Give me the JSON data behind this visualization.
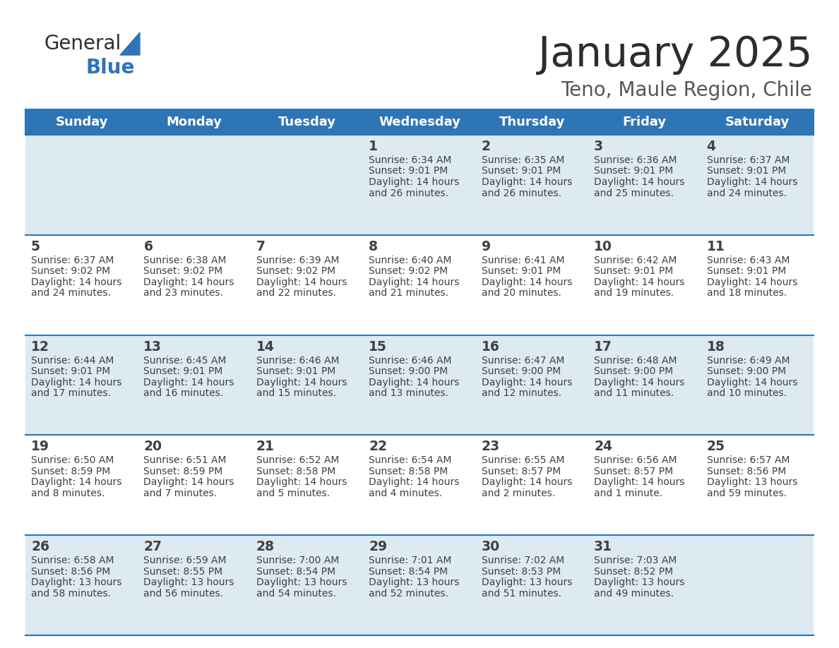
{
  "title": "January 2025",
  "subtitle": "Teno, Maule Region, Chile",
  "days_of_week": [
    "Sunday",
    "Monday",
    "Tuesday",
    "Wednesday",
    "Thursday",
    "Friday",
    "Saturday"
  ],
  "header_bg": "#2E75B6",
  "header_text": "#FFFFFF",
  "row_bg_odd": "#DEEAF1",
  "row_bg_even": "#FFFFFF",
  "cell_border_color": "#2E75B6",
  "text_color": "#404040",
  "calendar": [
    [
      null,
      null,
      null,
      {
        "day": 1,
        "sunrise": "6:34 AM",
        "sunset": "9:01 PM",
        "daylight": "14 hours",
        "daylight2": "and 26 minutes."
      },
      {
        "day": 2,
        "sunrise": "6:35 AM",
        "sunset": "9:01 PM",
        "daylight": "14 hours",
        "daylight2": "and 26 minutes."
      },
      {
        "day": 3,
        "sunrise": "6:36 AM",
        "sunset": "9:01 PM",
        "daylight": "14 hours",
        "daylight2": "and 25 minutes."
      },
      {
        "day": 4,
        "sunrise": "6:37 AM",
        "sunset": "9:01 PM",
        "daylight": "14 hours",
        "daylight2": "and 24 minutes."
      }
    ],
    [
      {
        "day": 5,
        "sunrise": "6:37 AM",
        "sunset": "9:02 PM",
        "daylight": "14 hours",
        "daylight2": "and 24 minutes."
      },
      {
        "day": 6,
        "sunrise": "6:38 AM",
        "sunset": "9:02 PM",
        "daylight": "14 hours",
        "daylight2": "and 23 minutes."
      },
      {
        "day": 7,
        "sunrise": "6:39 AM",
        "sunset": "9:02 PM",
        "daylight": "14 hours",
        "daylight2": "and 22 minutes."
      },
      {
        "day": 8,
        "sunrise": "6:40 AM",
        "sunset": "9:02 PM",
        "daylight": "14 hours",
        "daylight2": "and 21 minutes."
      },
      {
        "day": 9,
        "sunrise": "6:41 AM",
        "sunset": "9:01 PM",
        "daylight": "14 hours",
        "daylight2": "and 20 minutes."
      },
      {
        "day": 10,
        "sunrise": "6:42 AM",
        "sunset": "9:01 PM",
        "daylight": "14 hours",
        "daylight2": "and 19 minutes."
      },
      {
        "day": 11,
        "sunrise": "6:43 AM",
        "sunset": "9:01 PM",
        "daylight": "14 hours",
        "daylight2": "and 18 minutes."
      }
    ],
    [
      {
        "day": 12,
        "sunrise": "6:44 AM",
        "sunset": "9:01 PM",
        "daylight": "14 hours",
        "daylight2": "and 17 minutes."
      },
      {
        "day": 13,
        "sunrise": "6:45 AM",
        "sunset": "9:01 PM",
        "daylight": "14 hours",
        "daylight2": "and 16 minutes."
      },
      {
        "day": 14,
        "sunrise": "6:46 AM",
        "sunset": "9:01 PM",
        "daylight": "14 hours",
        "daylight2": "and 15 minutes."
      },
      {
        "day": 15,
        "sunrise": "6:46 AM",
        "sunset": "9:00 PM",
        "daylight": "14 hours",
        "daylight2": "and 13 minutes."
      },
      {
        "day": 16,
        "sunrise": "6:47 AM",
        "sunset": "9:00 PM",
        "daylight": "14 hours",
        "daylight2": "and 12 minutes."
      },
      {
        "day": 17,
        "sunrise": "6:48 AM",
        "sunset": "9:00 PM",
        "daylight": "14 hours",
        "daylight2": "and 11 minutes."
      },
      {
        "day": 18,
        "sunrise": "6:49 AM",
        "sunset": "9:00 PM",
        "daylight": "14 hours",
        "daylight2": "and 10 minutes."
      }
    ],
    [
      {
        "day": 19,
        "sunrise": "6:50 AM",
        "sunset": "8:59 PM",
        "daylight": "14 hours",
        "daylight2": "and 8 minutes."
      },
      {
        "day": 20,
        "sunrise": "6:51 AM",
        "sunset": "8:59 PM",
        "daylight": "14 hours",
        "daylight2": "and 7 minutes."
      },
      {
        "day": 21,
        "sunrise": "6:52 AM",
        "sunset": "8:58 PM",
        "daylight": "14 hours",
        "daylight2": "and 5 minutes."
      },
      {
        "day": 22,
        "sunrise": "6:54 AM",
        "sunset": "8:58 PM",
        "daylight": "14 hours",
        "daylight2": "and 4 minutes."
      },
      {
        "day": 23,
        "sunrise": "6:55 AM",
        "sunset": "8:57 PM",
        "daylight": "14 hours",
        "daylight2": "and 2 minutes."
      },
      {
        "day": 24,
        "sunrise": "6:56 AM",
        "sunset": "8:57 PM",
        "daylight": "14 hours",
        "daylight2": "and 1 minute."
      },
      {
        "day": 25,
        "sunrise": "6:57 AM",
        "sunset": "8:56 PM",
        "daylight": "13 hours",
        "daylight2": "and 59 minutes."
      }
    ],
    [
      {
        "day": 26,
        "sunrise": "6:58 AM",
        "sunset": "8:56 PM",
        "daylight": "13 hours",
        "daylight2": "and 58 minutes."
      },
      {
        "day": 27,
        "sunrise": "6:59 AM",
        "sunset": "8:55 PM",
        "daylight": "13 hours",
        "daylight2": "and 56 minutes."
      },
      {
        "day": 28,
        "sunrise": "7:00 AM",
        "sunset": "8:54 PM",
        "daylight": "13 hours",
        "daylight2": "and 54 minutes."
      },
      {
        "day": 29,
        "sunrise": "7:01 AM",
        "sunset": "8:54 PM",
        "daylight": "13 hours",
        "daylight2": "and 52 minutes."
      },
      {
        "day": 30,
        "sunrise": "7:02 AM",
        "sunset": "8:53 PM",
        "daylight": "13 hours",
        "daylight2": "and 51 minutes."
      },
      {
        "day": 31,
        "sunrise": "7:03 AM",
        "sunset": "8:52 PM",
        "daylight": "13 hours",
        "daylight2": "and 49 minutes."
      },
      null
    ]
  ]
}
